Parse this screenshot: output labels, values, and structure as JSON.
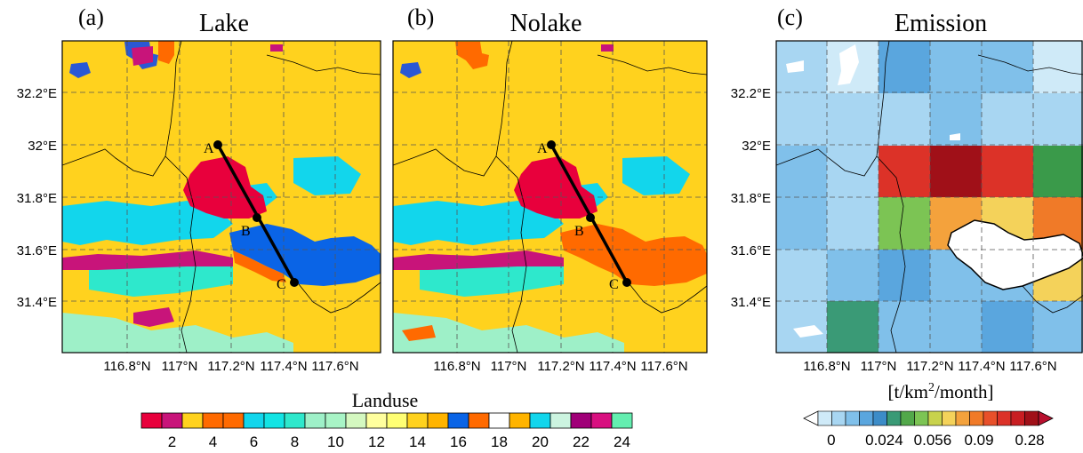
{
  "figure": {
    "panels": [
      {
        "id": "a",
        "label": "(a)",
        "title": "Lake"
      },
      {
        "id": "b",
        "label": "(b)",
        "title": "Nolake"
      },
      {
        "id": "c",
        "label": "(c)",
        "title": "Emission"
      }
    ],
    "point_labels": [
      "A",
      "B",
      "C"
    ]
  },
  "chart_data": [
    {
      "type": "heatmap",
      "panel": "(a)",
      "title": "Lake",
      "x_ticks": [
        "116.8°N",
        "117°N",
        "117.2°N",
        "117.4°N",
        "117.6°N"
      ],
      "x_tick_values": [
        116.8,
        117.0,
        117.2,
        117.4,
        117.6
      ],
      "y_ticks": [
        "32.2°E",
        "32°E",
        "31.8°E",
        "31.6°E",
        "31.4°E"
      ],
      "y_tick_values": [
        32.2,
        32.0,
        31.8,
        31.6,
        31.4
      ],
      "xlim": [
        116.62,
        117.78
      ],
      "ylim": [
        31.25,
        32.38
      ],
      "grid": true,
      "transect": [
        {
          "label": "A",
          "x": 117.2,
          "y": 32.0
        },
        {
          "label": "B",
          "x": 117.35,
          "y": 31.72
        },
        {
          "label": "C",
          "x": 117.49,
          "y": 31.47
        }
      ]
    },
    {
      "type": "heatmap",
      "panel": "(b)",
      "title": "Nolake",
      "x_ticks": [
        "116.8°N",
        "117°N",
        "117.2°N",
        "117.4°N",
        "117.6°N"
      ],
      "x_tick_values": [
        116.8,
        117.0,
        117.2,
        117.4,
        117.6
      ],
      "xlim": [
        116.62,
        117.78
      ],
      "ylim": [
        31.25,
        32.38
      ],
      "grid": true,
      "transect": [
        {
          "label": "A",
          "x": 117.2,
          "y": 32.0
        },
        {
          "label": "B",
          "x": 117.35,
          "y": 31.72
        },
        {
          "label": "C",
          "x": 117.49,
          "y": 31.47
        }
      ]
    },
    {
      "type": "heatmap",
      "panel": "(c)",
      "title": "Emission",
      "x_ticks": [
        "116.8°N",
        "117°N",
        "117.2°N",
        "117.4°N",
        "117.6°N"
      ],
      "x_tick_values": [
        116.8,
        117.0,
        117.2,
        117.4,
        117.6
      ],
      "y_ticks": [
        "32.2°E",
        "32°E",
        "31.8°E",
        "31.6°E",
        "31.4°E"
      ],
      "y_tick_values": [
        32.2,
        32.0,
        31.8,
        31.6,
        31.4
      ],
      "xlim": [
        116.62,
        117.78
      ],
      "ylim": [
        31.25,
        32.38
      ],
      "grid": true
    }
  ],
  "landuse_legend": {
    "title": "Landuse",
    "labels": [
      "2",
      "4",
      "6",
      "8",
      "10",
      "12",
      "14",
      "16",
      "18",
      "20",
      "22",
      "24"
    ],
    "colors": [
      "#e8003c",
      "#c8147a",
      "#ffd21e",
      "#ff6a00",
      "#ff6a00",
      "#12d6ec",
      "#12e4e4",
      "#2ee8cc",
      "#9ef0c8",
      "#a8f4c6",
      "#d4f8c0",
      "#ffff9e",
      "#ffff74",
      "#ffd21e",
      "#ffb400",
      "#0a64e6",
      "#ff6a00",
      "#ffffff",
      "#ffb400",
      "#12d6ec",
      "#ccf4e0",
      "#a00078",
      "#d81080",
      "#64eeb0"
    ]
  },
  "emission_legend": {
    "unit_parts": [
      "[t/km",
      "2",
      "/month]"
    ],
    "labels": [
      "0",
      "0.024",
      "0.056",
      "0.09",
      "0.28"
    ],
    "colors": [
      "#ffffff",
      "#cfeaf8",
      "#a8d6f2",
      "#80c0ea",
      "#5aa6de",
      "#3c8cc8",
      "#3a9a76",
      "#52a84a",
      "#7cc454",
      "#c8d24c",
      "#f4d25a",
      "#f4a23c",
      "#f07a28",
      "#e8502a",
      "#dc3228",
      "#c81e22",
      "#a01018",
      "#b8102e"
    ]
  },
  "colors": {
    "water": "#0a64e6",
    "urban": "#e8003c",
    "cropland": "#ffd21e",
    "lake_replaced": "#ff6a00"
  }
}
